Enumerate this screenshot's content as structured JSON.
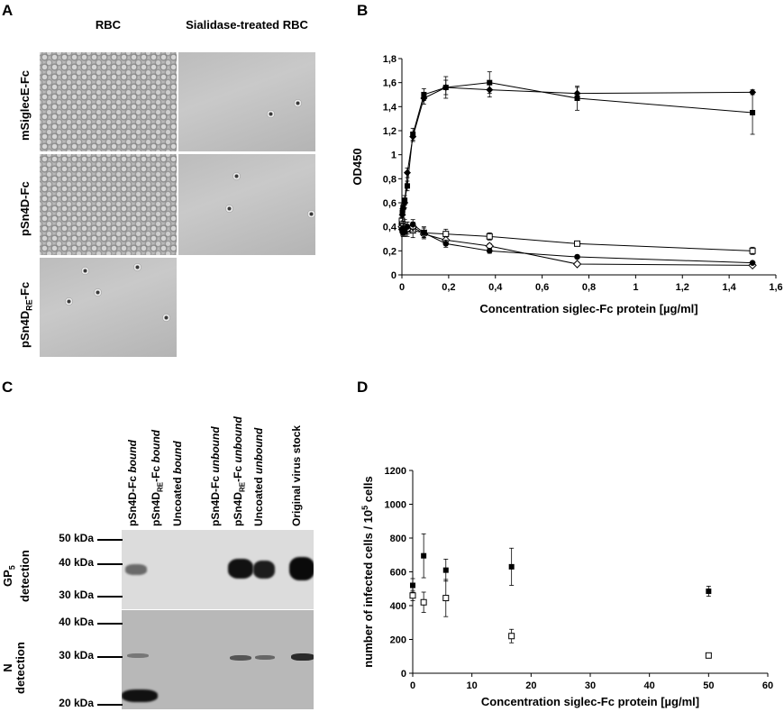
{
  "panels": {
    "A": {
      "label": "A",
      "col_headers": [
        "RBC",
        "Sialidase-treated RBC"
      ],
      "rows": [
        {
          "label": "mSiglecE-Fc"
        },
        {
          "label": "pSn4D-Fc"
        },
        {
          "label_pre": "pSn4D",
          "label_sub": "RE",
          "label_post": "-Fc"
        }
      ]
    },
    "B": {
      "label": "B"
    },
    "C": {
      "label": "C",
      "lanes": [
        {
          "pre": "pSn4D-Fc ",
          "sub": "",
          "mid": "",
          "em": "bound"
        },
        {
          "pre": "pSn4D",
          "sub": "RE",
          "mid": "-Fc ",
          "em": "bound"
        },
        {
          "pre": "Uncoated ",
          "sub": "",
          "mid": "",
          "em": "bound"
        },
        {
          "pre": "pSn4D-Fc ",
          "sub": "",
          "mid": "",
          "em": "unbound"
        },
        {
          "pre": "pSn4D",
          "sub": "RE",
          "mid": "-Fc ",
          "em": "unbound"
        },
        {
          "pre": "Uncoated ",
          "sub": "",
          "mid": "",
          "em": "unbound"
        },
        {
          "pre": "Original virus stock",
          "sub": "",
          "mid": "",
          "em": ""
        }
      ],
      "markers_top": [
        "50 kDa",
        "40 kDa",
        "30 kDa"
      ],
      "markers_bottom": [
        "40 kDa",
        "30 kDa",
        "20 kDa"
      ],
      "top_label_pre": "GP",
      "top_label_sub": "5",
      "top_label_post": "detection",
      "bottom_label_pre": "N",
      "bottom_label_post": "detection"
    },
    "D": {
      "label": "D"
    }
  },
  "chart_data": [
    {
      "panel": "B",
      "type": "line",
      "xlabel": "Concentration siglec-Fc protein [µg/ml]",
      "ylabel": "OD450",
      "xlim": [
        0,
        1.6
      ],
      "ylim": [
        0,
        1.8
      ],
      "xticks": [
        "0",
        "0,2",
        "0,4",
        "0,6",
        "0,8",
        "1",
        "1,2",
        "1,4",
        "1,6"
      ],
      "yticks": [
        "0",
        "0,2",
        "0,4",
        "0,6",
        "0,8",
        "1",
        "1,2",
        "1,4",
        "1,6",
        "1,8"
      ],
      "x": [
        0,
        0.002,
        0.005,
        0.012,
        0.023,
        0.047,
        0.094,
        0.188,
        0.375,
        0.75,
        1.5
      ],
      "series": [
        {
          "marker": "filled-diamond",
          "values": [
            0.42,
            0.5,
            0.55,
            0.6,
            0.85,
            1.15,
            1.47,
            1.56,
            1.54,
            1.51,
            1.52
          ],
          "err": [
            0.03,
            0.03,
            0.03,
            0.04,
            0.04,
            0.04,
            0.05,
            0.06,
            0.06,
            0.05,
            0.02
          ]
        },
        {
          "marker": "filled-square",
          "values": [
            0.45,
            0.52,
            0.56,
            0.62,
            0.74,
            1.17,
            1.5,
            1.56,
            1.6,
            1.47,
            1.35
          ],
          "err": [
            0.03,
            0.03,
            0.03,
            0.04,
            0.04,
            0.05,
            0.05,
            0.09,
            0.09,
            0.1,
            0.18
          ]
        },
        {
          "marker": "open-square",
          "values": [
            0.45,
            0.42,
            0.4,
            0.4,
            0.38,
            0.37,
            0.35,
            0.34,
            0.32,
            0.26,
            0.2
          ],
          "err": [
            0.05,
            0.05,
            0.05,
            0.06,
            0.06,
            0.06,
            0.05,
            0.04,
            0.03,
            0.02,
            0.03
          ]
        },
        {
          "marker": "open-diamond",
          "values": [
            0.4,
            0.38,
            0.37,
            0.37,
            0.38,
            0.4,
            0.34,
            0.29,
            0.24,
            0.09,
            0.08
          ],
          "err": [
            0.03,
            0.03,
            0.03,
            0.04,
            0.04,
            0.04,
            0.03,
            0.03,
            0.02,
            0.01,
            0.01
          ]
        },
        {
          "marker": "filled-circle",
          "values": [
            0.38,
            0.36,
            0.35,
            0.36,
            0.4,
            0.42,
            0.35,
            0.26,
            0.2,
            0.15,
            0.1
          ],
          "err": [
            0.03,
            0.03,
            0.03,
            0.04,
            0.04,
            0.04,
            0.04,
            0.03,
            0.02,
            0.01,
            0.01
          ]
        }
      ]
    },
    {
      "panel": "D",
      "type": "scatter",
      "xlabel": "Concentration siglec-Fc protein [µg/ml]",
      "ylabel_pre": "number of infected cells / 10",
      "ylabel_sup": "5",
      "ylabel_post": " cells",
      "xlim": [
        0,
        60
      ],
      "ylim": [
        0,
        1200
      ],
      "xticks": [
        "0",
        "10",
        "20",
        "30",
        "40",
        "50",
        "60"
      ],
      "yticks": [
        "0",
        "200",
        "400",
        "600",
        "800",
        "1000",
        "1200"
      ],
      "series": [
        {
          "marker": "filled-square",
          "x": [
            0,
            1.85,
            5.6,
            16.7,
            50
          ],
          "values": [
            520,
            695,
            610,
            630,
            485
          ],
          "err": [
            40,
            130,
            65,
            110,
            30
          ]
        },
        {
          "marker": "open-square",
          "x": [
            0,
            1.85,
            5.6,
            16.7,
            50
          ],
          "values": [
            460,
            420,
            445,
            220,
            105
          ],
          "err": [
            30,
            60,
            110,
            40,
            10
          ]
        }
      ]
    }
  ]
}
